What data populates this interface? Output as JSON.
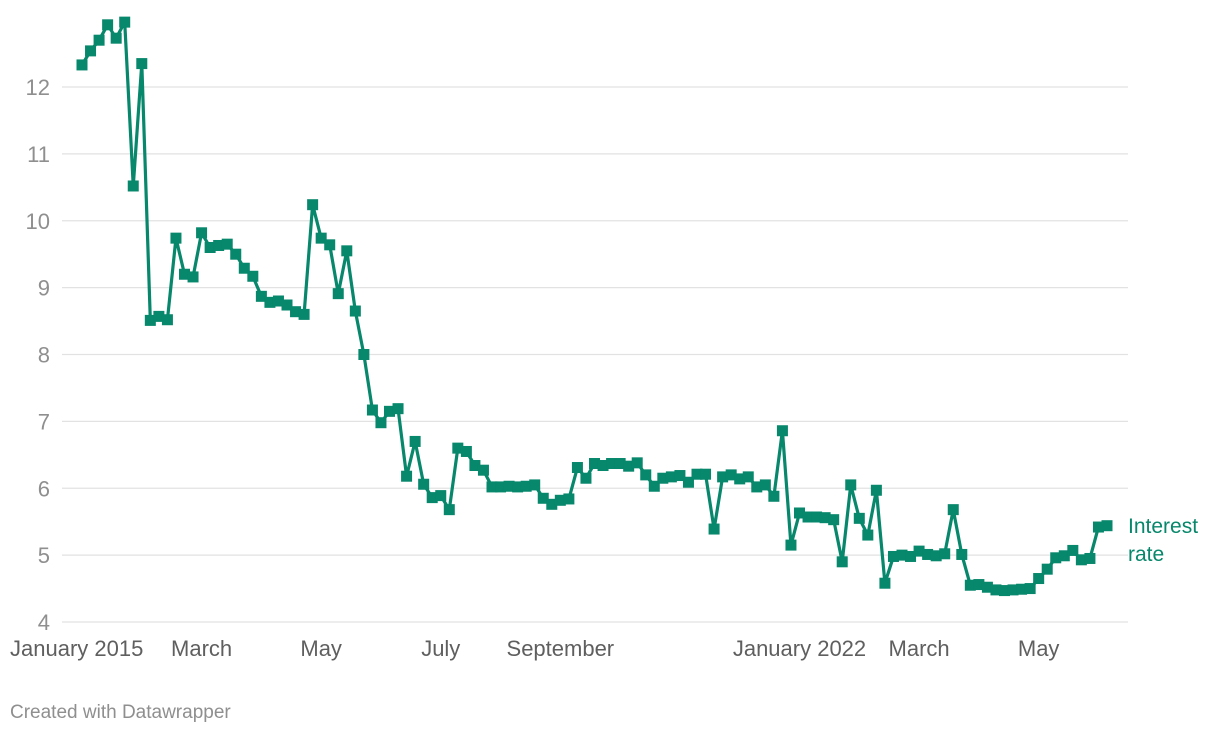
{
  "chart_data": {
    "type": "line",
    "title": "",
    "xlabel": "",
    "ylabel": "",
    "ylim": [
      4,
      13
    ],
    "yticks": [
      4,
      5,
      6,
      7,
      8,
      9,
      10,
      11,
      12
    ],
    "grid": "horizontal",
    "legend": "direct label at end of line",
    "x_tick_labels": [
      {
        "label": "January 2015",
        "index": 0
      },
      {
        "label": "March",
        "index": 14
      },
      {
        "label": "May",
        "index": 28
      },
      {
        "label": "July",
        "index": 42
      },
      {
        "label": "September",
        "index": 56
      },
      {
        "label": "January 2022",
        "index": 84
      },
      {
        "label": "March",
        "index": 98
      },
      {
        "label": "May",
        "index": 112
      }
    ],
    "series": [
      {
        "name": "Interest rate",
        "color": "#07876b",
        "values": [
          12.33,
          12.54,
          12.7,
          12.93,
          12.73,
          12.97,
          10.52,
          12.35,
          8.51,
          8.57,
          8.52,
          9.74,
          9.2,
          9.16,
          9.82,
          9.6,
          9.63,
          9.65,
          9.5,
          9.29,
          9.17,
          8.87,
          8.78,
          8.8,
          8.74,
          8.64,
          8.6,
          10.24,
          9.74,
          9.64,
          8.91,
          9.55,
          8.65,
          8.0,
          7.17,
          6.98,
          7.15,
          7.19,
          6.18,
          6.7,
          6.06,
          5.86,
          5.89,
          5.68,
          6.6,
          6.55,
          6.34,
          6.27,
          6.02,
          6.02,
          6.03,
          6.02,
          6.03,
          6.05,
          5.85,
          5.76,
          5.82,
          5.84,
          6.31,
          6.15,
          6.37,
          6.34,
          6.37,
          6.37,
          6.33,
          6.38,
          6.2,
          6.03,
          6.15,
          6.17,
          6.19,
          6.09,
          6.21,
          6.21,
          5.39,
          6.17,
          6.2,
          6.14,
          6.17,
          6.02,
          6.05,
          5.88,
          6.86,
          5.15,
          5.63,
          5.57,
          5.57,
          5.56,
          5.53,
          4.9,
          6.05,
          5.55,
          5.3,
          5.97,
          4.58,
          4.98,
          5.0,
          4.98,
          5.06,
          5.01,
          4.99,
          5.02,
          5.68,
          5.01,
          4.55,
          4.56,
          4.52,
          4.48,
          4.47,
          4.48,
          4.49,
          4.5,
          4.65,
          4.79,
          4.96,
          4.99,
          5.07,
          4.93,
          4.95,
          5.42,
          5.44
        ]
      }
    ]
  },
  "direct_label": {
    "line1": "Interest",
    "line2": "rate"
  },
  "credit": "Created with Datawrapper"
}
